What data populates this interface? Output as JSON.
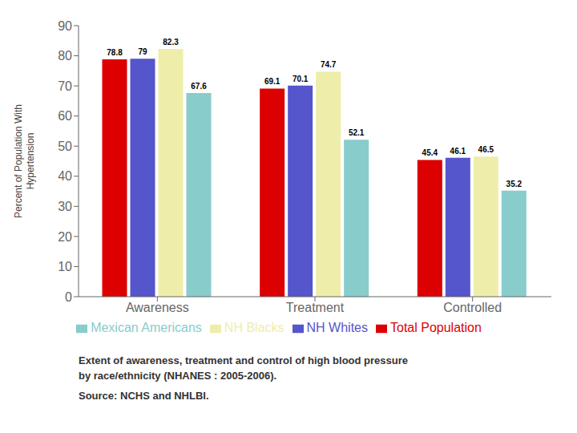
{
  "chart_data": {
    "type": "bar",
    "categories": [
      "Awareness",
      "Treatment",
      "Controlled"
    ],
    "series": [
      {
        "name": "Total Population",
        "color": "#dd0000",
        "values": [
          78.8,
          69.1,
          45.4
        ]
      },
      {
        "name": "NH Whites",
        "color": "#5555cc",
        "values": [
          79.0,
          70.1,
          46.1
        ]
      },
      {
        "name": "NH Blacks",
        "color": "#eeeeaa",
        "values": [
          82.3,
          74.7,
          46.5
        ]
      },
      {
        "name": "Mexican Americans",
        "color": "#88cccc",
        "values": [
          67.6,
          52.1,
          35.2
        ]
      }
    ],
    "ylabel": "Percent of Population With\nHypertension",
    "ylim": [
      0,
      90
    ],
    "yticks": [
      0,
      10,
      20,
      30,
      40,
      50,
      60,
      70,
      80,
      90
    ],
    "grid": false,
    "legend": "bottom",
    "data_labels": true,
    "annotations": [
      "Extent of awareness, treatment and control of high blood pressure",
      "by race/ethnicity (NHANES : 2005-2006).",
      "Source: NCHS and NHLBI."
    ]
  }
}
